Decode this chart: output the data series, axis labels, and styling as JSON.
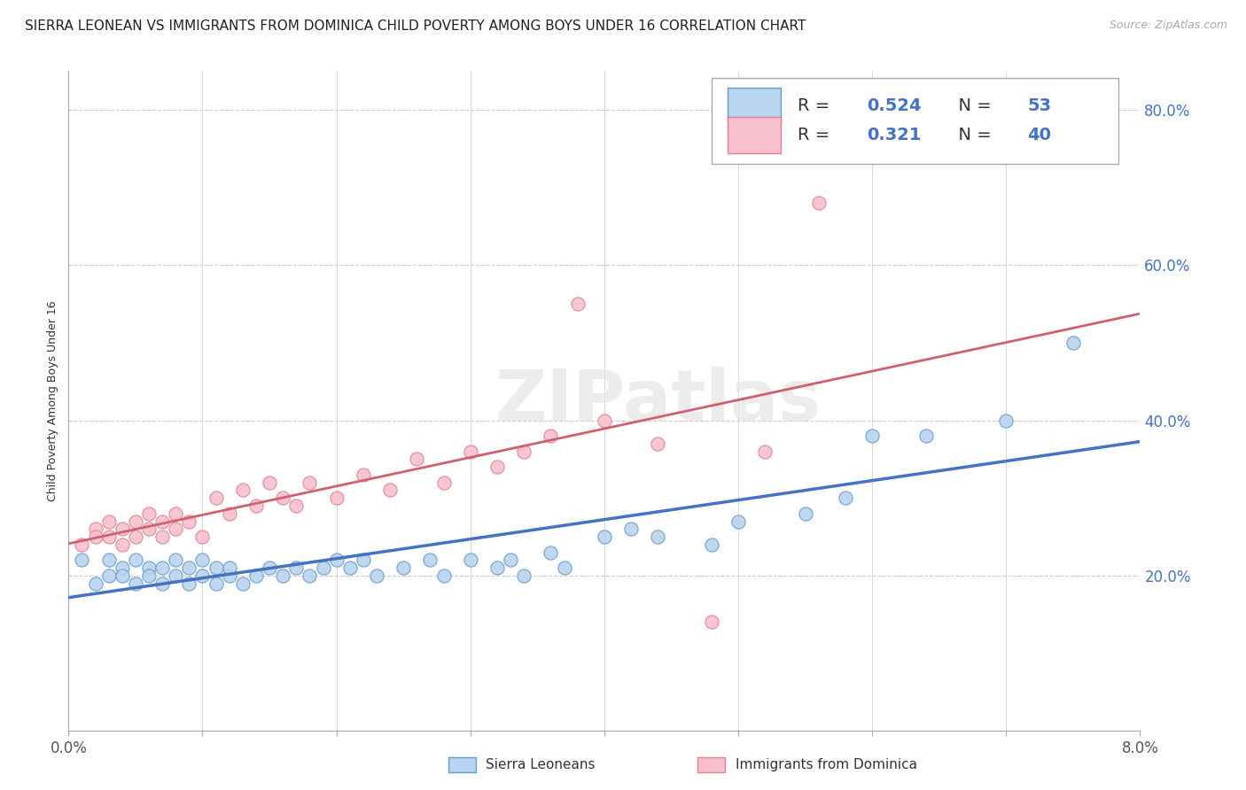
{
  "title": "SIERRA LEONEAN VS IMMIGRANTS FROM DOMINICA CHILD POVERTY AMONG BOYS UNDER 16 CORRELATION CHART",
  "source": "Source: ZipAtlas.com",
  "ylabel": "Child Poverty Among Boys Under 16",
  "xlim": [
    0.0,
    0.08
  ],
  "ylim": [
    0.0,
    0.85
  ],
  "yticks": [
    0.2,
    0.4,
    0.6,
    0.8
  ],
  "ytick_labels": [
    "20.0%",
    "40.0%",
    "60.0%",
    "80.0%"
  ],
  "xticks": [
    0.0,
    0.01,
    0.02,
    0.03,
    0.04,
    0.05,
    0.06,
    0.07,
    0.08
  ],
  "xtick_labels": [
    "0.0%",
    "",
    "",
    "",
    "",
    "",
    "",
    "",
    "8.0%"
  ],
  "series1_label": "Sierra Leoneans",
  "series1_color": "#b8d4ee",
  "series1_edge_color": "#6699cc",
  "series1_line_color": "#4472c4",
  "series1_R": "0.524",
  "series1_N": "53",
  "series2_label": "Immigrants from Dominica",
  "series2_color": "#f8c0cc",
  "series2_edge_color": "#e08090",
  "series2_line_color": "#d06070",
  "series2_R": "0.321",
  "series2_N": "40",
  "background_color": "#ffffff",
  "grid_color": "#cccccc",
  "watermark": "ZIPatlas",
  "title_fontsize": 11,
  "axis_label_fontsize": 9,
  "tick_fontsize": 12,
  "legend_fontsize": 14,
  "sierra_x": [
    0.001,
    0.002,
    0.003,
    0.003,
    0.004,
    0.004,
    0.005,
    0.005,
    0.006,
    0.006,
    0.007,
    0.007,
    0.008,
    0.008,
    0.009,
    0.009,
    0.01,
    0.01,
    0.011,
    0.011,
    0.012,
    0.012,
    0.013,
    0.014,
    0.015,
    0.016,
    0.017,
    0.018,
    0.019,
    0.02,
    0.021,
    0.022,
    0.023,
    0.025,
    0.027,
    0.028,
    0.03,
    0.032,
    0.033,
    0.034,
    0.036,
    0.037,
    0.04,
    0.042,
    0.044,
    0.048,
    0.05,
    0.055,
    0.058,
    0.06,
    0.064,
    0.07,
    0.075
  ],
  "sierra_y": [
    0.22,
    0.19,
    0.2,
    0.22,
    0.21,
    0.2,
    0.19,
    0.22,
    0.21,
    0.2,
    0.19,
    0.21,
    0.2,
    0.22,
    0.21,
    0.19,
    0.2,
    0.22,
    0.21,
    0.19,
    0.2,
    0.21,
    0.19,
    0.2,
    0.21,
    0.2,
    0.21,
    0.2,
    0.21,
    0.22,
    0.21,
    0.22,
    0.2,
    0.21,
    0.22,
    0.2,
    0.22,
    0.21,
    0.22,
    0.2,
    0.23,
    0.21,
    0.25,
    0.26,
    0.25,
    0.24,
    0.27,
    0.28,
    0.3,
    0.38,
    0.38,
    0.4,
    0.5
  ],
  "dominica_x": [
    0.001,
    0.002,
    0.002,
    0.003,
    0.003,
    0.004,
    0.004,
    0.005,
    0.005,
    0.006,
    0.006,
    0.007,
    0.007,
    0.008,
    0.008,
    0.009,
    0.01,
    0.011,
    0.012,
    0.013,
    0.014,
    0.015,
    0.016,
    0.017,
    0.018,
    0.02,
    0.022,
    0.024,
    0.026,
    0.028,
    0.03,
    0.032,
    0.034,
    0.036,
    0.038,
    0.04,
    0.044,
    0.048,
    0.052,
    0.056
  ],
  "dominica_y": [
    0.24,
    0.26,
    0.25,
    0.27,
    0.25,
    0.24,
    0.26,
    0.25,
    0.27,
    0.26,
    0.28,
    0.27,
    0.25,
    0.26,
    0.28,
    0.27,
    0.25,
    0.3,
    0.28,
    0.31,
    0.29,
    0.32,
    0.3,
    0.29,
    0.32,
    0.3,
    0.33,
    0.31,
    0.35,
    0.32,
    0.36,
    0.34,
    0.36,
    0.38,
    0.55,
    0.4,
    0.37,
    0.14,
    0.36,
    0.68
  ]
}
